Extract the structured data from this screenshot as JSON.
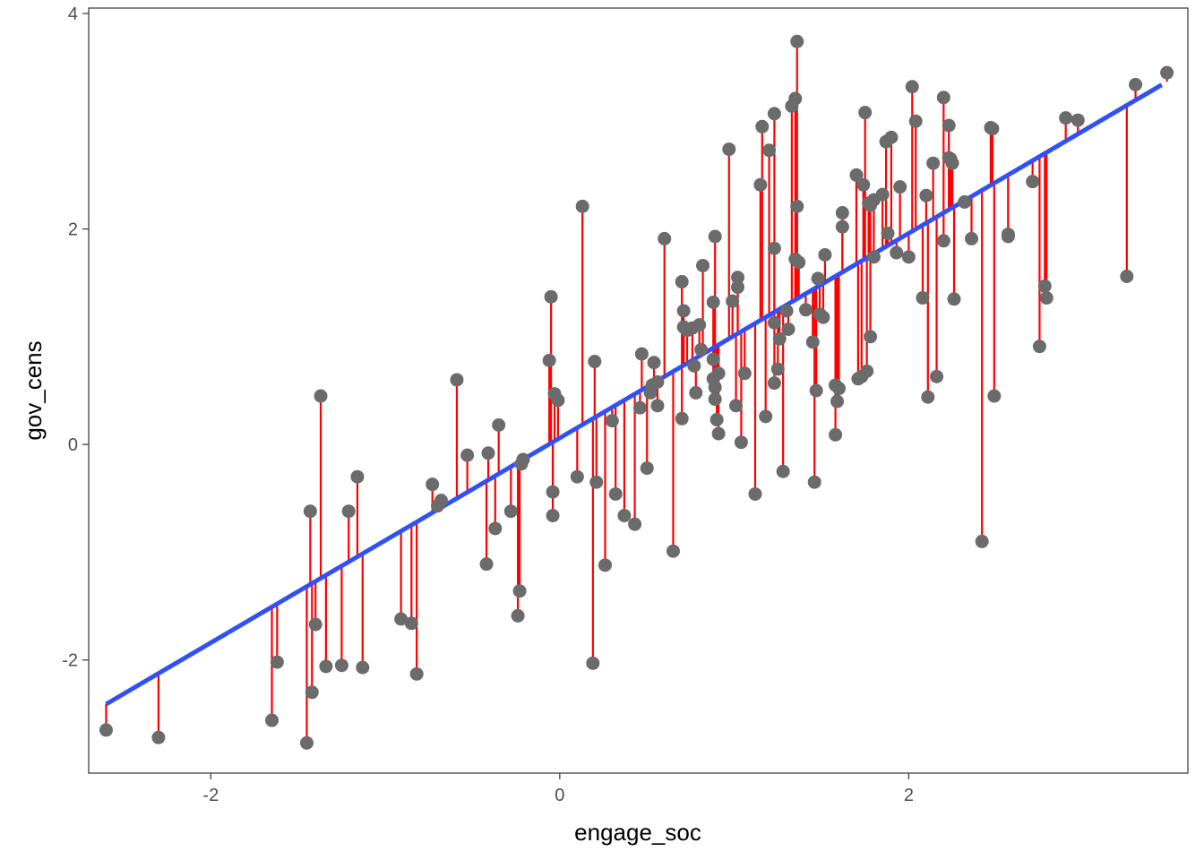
{
  "chart_data": {
    "type": "scatter",
    "xlabel": "engage_soc",
    "ylabel": "gov_cens",
    "xlim": [
      -2.7,
      3.6
    ],
    "ylim": [
      -3.05,
      4.05
    ],
    "x_ticks": [
      -2,
      0,
      2
    ],
    "x_tick_labels": [
      "-2",
      "0",
      "2"
    ],
    "y_ticks": [
      -2,
      0,
      2,
      4
    ],
    "y_tick_labels": [
      "-2",
      "0",
      "2",
      "4"
    ],
    "grid": false,
    "fit": {
      "intercept": 0.06,
      "slope": 0.95,
      "x_range": [
        -2.6,
        3.45
      ],
      "color": "#3050f8"
    },
    "residual_color": "#ff0000",
    "point_color": "#6b6b6b",
    "points": [
      {
        "x": -2.6,
        "y": -2.65
      },
      {
        "x": -2.3,
        "y": -2.72
      },
      {
        "x": -1.65,
        "y": -2.56
      },
      {
        "x": -1.62,
        "y": -2.02
      },
      {
        "x": -1.45,
        "y": -2.77
      },
      {
        "x": -1.43,
        "y": -0.62
      },
      {
        "x": -1.42,
        "y": -2.3
      },
      {
        "x": -1.4,
        "y": -1.67
      },
      {
        "x": -1.37,
        "y": 0.45
      },
      {
        "x": -1.34,
        "y": -2.06
      },
      {
        "x": -1.25,
        "y": -2.05
      },
      {
        "x": -1.21,
        "y": -0.62
      },
      {
        "x": -1.16,
        "y": -0.3
      },
      {
        "x": -1.13,
        "y": -2.07
      },
      {
        "x": -0.91,
        "y": -1.62
      },
      {
        "x": -0.85,
        "y": -1.66
      },
      {
        "x": -0.82,
        "y": -2.13
      },
      {
        "x": -0.73,
        "y": -0.37
      },
      {
        "x": -0.7,
        "y": -0.57
      },
      {
        "x": -0.68,
        "y": -0.52
      },
      {
        "x": -0.59,
        "y": 0.6
      },
      {
        "x": -0.53,
        "y": -0.1
      },
      {
        "x": -0.42,
        "y": -1.11
      },
      {
        "x": -0.41,
        "y": -0.08
      },
      {
        "x": -0.37,
        "y": -0.78
      },
      {
        "x": -0.35,
        "y": 0.18
      },
      {
        "x": -0.28,
        "y": -0.62
      },
      {
        "x": -0.24,
        "y": -1.59
      },
      {
        "x": -0.23,
        "y": -1.36
      },
      {
        "x": -0.22,
        "y": -0.18
      },
      {
        "x": -0.21,
        "y": -0.14
      },
      {
        "x": -0.06,
        "y": 0.78
      },
      {
        "x": -0.05,
        "y": 1.37
      },
      {
        "x": -0.04,
        "y": -0.44
      },
      {
        "x": -0.04,
        "y": -0.66
      },
      {
        "x": -0.03,
        "y": 0.47
      },
      {
        "x": -0.01,
        "y": 0.41
      },
      {
        "x": 0.1,
        "y": -0.3
      },
      {
        "x": 0.13,
        "y": 2.21
      },
      {
        "x": 0.19,
        "y": -2.03
      },
      {
        "x": 0.2,
        "y": 0.77
      },
      {
        "x": 0.21,
        "y": -0.35
      },
      {
        "x": 0.26,
        "y": -1.12
      },
      {
        "x": 0.3,
        "y": 0.22
      },
      {
        "x": 0.32,
        "y": -0.46
      },
      {
        "x": 0.37,
        "y": -0.66
      },
      {
        "x": 0.43,
        "y": -0.74
      },
      {
        "x": 0.47,
        "y": 0.84
      },
      {
        "x": 0.46,
        "y": 0.34
      },
      {
        "x": 0.5,
        "y": -0.22
      },
      {
        "x": 0.52,
        "y": 0.48
      },
      {
        "x": 0.53,
        "y": 0.55
      },
      {
        "x": 0.54,
        "y": 0.76
      },
      {
        "x": 0.56,
        "y": 0.36
      },
      {
        "x": 0.56,
        "y": 0.58
      },
      {
        "x": 0.6,
        "y": 1.91
      },
      {
        "x": 0.65,
        "y": -0.99
      },
      {
        "x": 0.7,
        "y": 1.51
      },
      {
        "x": 0.71,
        "y": 1.24
      },
      {
        "x": 0.71,
        "y": 1.09
      },
      {
        "x": 0.7,
        "y": 0.24
      },
      {
        "x": 0.73,
        "y": 1.06
      },
      {
        "x": 0.76,
        "y": 1.08
      },
      {
        "x": 0.77,
        "y": 0.73
      },
      {
        "x": 0.78,
        "y": 0.48
      },
      {
        "x": 0.8,
        "y": 1.11
      },
      {
        "x": 0.81,
        "y": 0.88
      },
      {
        "x": 0.82,
        "y": 1.66
      },
      {
        "x": 0.88,
        "y": 1.32
      },
      {
        "x": 0.88,
        "y": 0.79
      },
      {
        "x": 0.88,
        "y": 0.61
      },
      {
        "x": 0.89,
        "y": 0.53
      },
      {
        "x": 0.89,
        "y": 0.42
      },
      {
        "x": 0.9,
        "y": 0.23
      },
      {
        "x": 0.89,
        "y": 1.93
      },
      {
        "x": 0.91,
        "y": 0.1
      },
      {
        "x": 0.91,
        "y": 0.66
      },
      {
        "x": 0.97,
        "y": 2.74
      },
      {
        "x": 0.99,
        "y": 1.33
      },
      {
        "x": 1.02,
        "y": 1.55
      },
      {
        "x": 1.02,
        "y": 1.46
      },
      {
        "x": 1.01,
        "y": 0.36
      },
      {
        "x": 1.04,
        "y": 0.02
      },
      {
        "x": 1.06,
        "y": 0.66
      },
      {
        "x": 1.12,
        "y": -0.46
      },
      {
        "x": 1.15,
        "y": 2.41
      },
      {
        "x": 1.16,
        "y": 2.95
      },
      {
        "x": 1.18,
        "y": 0.26
      },
      {
        "x": 1.2,
        "y": 2.73
      },
      {
        "x": 1.23,
        "y": 3.07
      },
      {
        "x": 1.23,
        "y": 1.82
      },
      {
        "x": 1.23,
        "y": 1.13
      },
      {
        "x": 1.23,
        "y": 0.57
      },
      {
        "x": 1.25,
        "y": 0.7
      },
      {
        "x": 1.26,
        "y": 0.98
      },
      {
        "x": 1.28,
        "y": -0.25
      },
      {
        "x": 1.3,
        "y": 1.24
      },
      {
        "x": 1.31,
        "y": 1.07
      },
      {
        "x": 1.33,
        "y": 3.14
      },
      {
        "x": 1.35,
        "y": 3.21
      },
      {
        "x": 1.35,
        "y": 1.72
      },
      {
        "x": 1.36,
        "y": 3.74
      },
      {
        "x": 1.36,
        "y": 2.21
      },
      {
        "x": 1.37,
        "y": 1.69
      },
      {
        "x": 1.41,
        "y": 1.25
      },
      {
        "x": 1.45,
        "y": 0.95
      },
      {
        "x": 1.46,
        "y": -0.35
      },
      {
        "x": 1.47,
        "y": 0.5
      },
      {
        "x": 1.48,
        "y": 1.54
      },
      {
        "x": 1.49,
        "y": 1.21
      },
      {
        "x": 1.51,
        "y": 1.18
      },
      {
        "x": 1.52,
        "y": 1.76
      },
      {
        "x": 1.58,
        "y": 0.55
      },
      {
        "x": 1.58,
        "y": 0.09
      },
      {
        "x": 1.59,
        "y": 0.4
      },
      {
        "x": 1.6,
        "y": 0.52
      },
      {
        "x": 1.62,
        "y": 2.15
      },
      {
        "x": 1.62,
        "y": 2.02
      },
      {
        "x": 1.7,
        "y": 2.5
      },
      {
        "x": 1.71,
        "y": 0.61
      },
      {
        "x": 1.73,
        "y": 0.63
      },
      {
        "x": 1.74,
        "y": 2.41
      },
      {
        "x": 1.75,
        "y": 3.08
      },
      {
        "x": 1.76,
        "y": 0.68
      },
      {
        "x": 1.77,
        "y": 2.24
      },
      {
        "x": 1.78,
        "y": 1.0
      },
      {
        "x": 1.78,
        "y": 2.22
      },
      {
        "x": 1.8,
        "y": 1.74
      },
      {
        "x": 1.8,
        "y": 2.27
      },
      {
        "x": 1.85,
        "y": 2.32
      },
      {
        "x": 1.87,
        "y": 2.81
      },
      {
        "x": 1.88,
        "y": 1.96
      },
      {
        "x": 1.9,
        "y": 2.85
      },
      {
        "x": 1.93,
        "y": 1.78
      },
      {
        "x": 1.95,
        "y": 2.39
      },
      {
        "x": 2.0,
        "y": 1.74
      },
      {
        "x": 2.02,
        "y": 3.32
      },
      {
        "x": 2.04,
        "y": 3.0
      },
      {
        "x": 2.08,
        "y": 1.36
      },
      {
        "x": 2.1,
        "y": 2.31
      },
      {
        "x": 2.11,
        "y": 0.44
      },
      {
        "x": 2.14,
        "y": 2.61
      },
      {
        "x": 2.16,
        "y": 0.63
      },
      {
        "x": 2.2,
        "y": 3.22
      },
      {
        "x": 2.2,
        "y": 1.89
      },
      {
        "x": 2.23,
        "y": 2.96
      },
      {
        "x": 2.23,
        "y": 2.66
      },
      {
        "x": 2.24,
        "y": 2.65
      },
      {
        "x": 2.25,
        "y": 2.61
      },
      {
        "x": 2.26,
        "y": 1.35
      },
      {
        "x": 2.32,
        "y": 2.25
      },
      {
        "x": 2.36,
        "y": 1.91
      },
      {
        "x": 2.42,
        "y": -0.9
      },
      {
        "x": 2.47,
        "y": 2.94
      },
      {
        "x": 2.48,
        "y": 2.93
      },
      {
        "x": 2.49,
        "y": 0.45
      },
      {
        "x": 2.57,
        "y": 1.95
      },
      {
        "x": 2.57,
        "y": 1.93
      },
      {
        "x": 2.71,
        "y": 2.44
      },
      {
        "x": 2.75,
        "y": 0.91
      },
      {
        "x": 2.78,
        "y": 1.47
      },
      {
        "x": 2.79,
        "y": 1.36
      },
      {
        "x": 2.9,
        "y": 3.03
      },
      {
        "x": 2.97,
        "y": 3.01
      },
      {
        "x": 3.25,
        "y": 1.56
      },
      {
        "x": 3.3,
        "y": 3.34
      },
      {
        "x": 3.48,
        "y": 3.45
      }
    ]
  }
}
